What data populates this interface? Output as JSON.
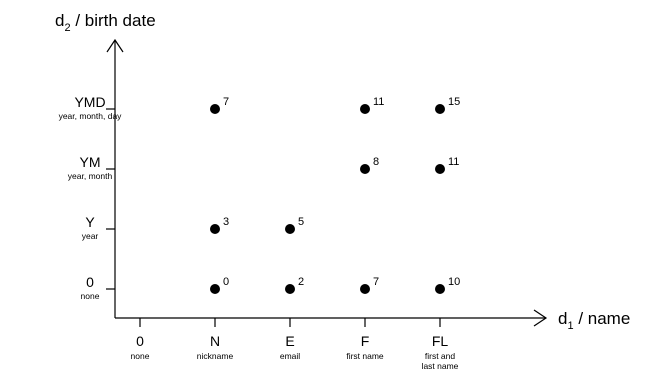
{
  "chart_data": {
    "type": "scatter",
    "x_axis": {
      "title_main": "d",
      "title_sub": "1",
      "title_rest": " / name",
      "categories": [
        {
          "label": "0",
          "sublabel": [
            "none"
          ]
        },
        {
          "label": "N",
          "sublabel": [
            "nickname"
          ]
        },
        {
          "label": "E",
          "sublabel": [
            "email"
          ]
        },
        {
          "label": "F",
          "sublabel": [
            "first name"
          ]
        },
        {
          "label": "FL",
          "sublabel": [
            "first and",
            "last name"
          ]
        }
      ]
    },
    "y_axis": {
      "title_main": "d",
      "title_sub": "2",
      "title_rest": " / birth date",
      "categories": [
        {
          "label": "0",
          "sublabel": "none"
        },
        {
          "label": "Y",
          "sublabel": "year"
        },
        {
          "label": "YM",
          "sublabel": "year, month"
        },
        {
          "label": "YMD",
          "sublabel": "year, month, day"
        }
      ]
    },
    "points": [
      {
        "x": "N",
        "y": "YMD",
        "value": "7"
      },
      {
        "x": "F",
        "y": "YMD",
        "value": "11"
      },
      {
        "x": "FL",
        "y": "YMD",
        "value": "15"
      },
      {
        "x": "F",
        "y": "YM",
        "value": "8"
      },
      {
        "x": "FL",
        "y": "YM",
        "value": "11"
      },
      {
        "x": "N",
        "y": "Y",
        "value": "3"
      },
      {
        "x": "E",
        "y": "Y",
        "value": "5"
      },
      {
        "x": "N",
        "y": "0",
        "value": "0"
      },
      {
        "x": "E",
        "y": "0",
        "value": "2"
      },
      {
        "x": "F",
        "y": "0",
        "value": "7"
      },
      {
        "x": "FL",
        "y": "0",
        "value": "10"
      }
    ],
    "legend": "none",
    "grid": false
  }
}
